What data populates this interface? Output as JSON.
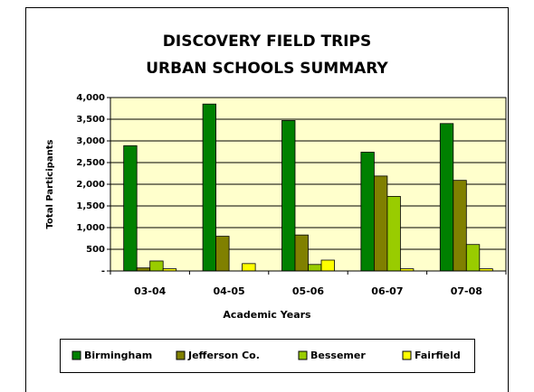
{
  "chart_data": {
    "type": "bar",
    "title": [
      "DISCOVERY FIELD TRIPS",
      "URBAN SCHOOLS SUMMARY"
    ],
    "x_label": "Academic Years",
    "y_label": "Total Participants",
    "categories": [
      "03-04",
      "04-05",
      "05-06",
      "06-07",
      "07-08"
    ],
    "series": [
      {
        "name": "Birmingham",
        "color": "#008000",
        "values": [
          2890,
          3850,
          3470,
          2740,
          3400
        ]
      },
      {
        "name": "Jefferson Co.",
        "color": "#808000",
        "values": [
          70,
          800,
          830,
          2190,
          2090
        ]
      },
      {
        "name": "Bessemer",
        "color": "#99cc00",
        "values": [
          230,
          0,
          150,
          1720,
          610
        ]
      },
      {
        "name": "Fairfield",
        "color": "#ffff00",
        "values": [
          50,
          170,
          250,
          50,
          50
        ]
      }
    ],
    "ylim": [
      0,
      4000
    ],
    "yticks": [
      {
        "value": 0,
        "label": "-"
      },
      500,
      {
        "value": 1000,
        "label": "1,000"
      },
      {
        "value": 1500,
        "label": "1,500"
      },
      {
        "value": 2000,
        "label": "2,000"
      },
      {
        "value": 2500,
        "label": "2,500"
      },
      {
        "value": 3000,
        "label": "3,000"
      },
      {
        "value": 3500,
        "label": "3,500"
      },
      {
        "value": 4000,
        "label": "4,000"
      }
    ],
    "grid": true,
    "legend": "bottom",
    "plot_background": "#ffffcc"
  }
}
